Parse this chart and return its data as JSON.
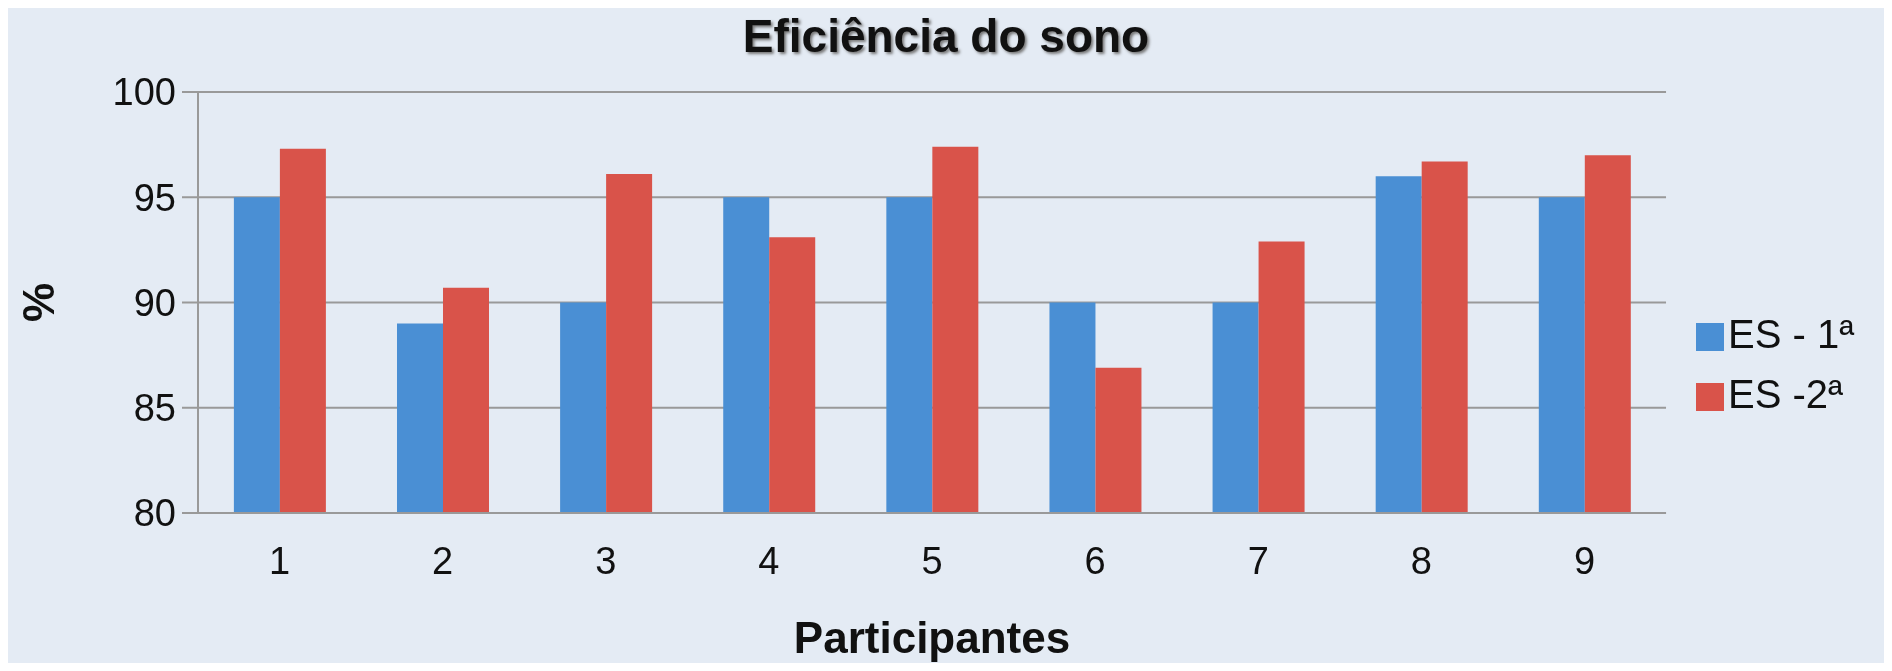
{
  "chart_data": {
    "type": "bar",
    "title": "Eficiência do sono",
    "xlabel": "Participantes",
    "ylabel": "%",
    "categories": [
      "1",
      "2",
      "3",
      "4",
      "5",
      "6",
      "7",
      "8",
      "9"
    ],
    "series": [
      {
        "name": "ES - 1ª",
        "color": "#4a8fd4",
        "values": [
          95,
          89,
          90,
          95,
          95,
          90,
          90,
          96,
          95
        ]
      },
      {
        "name": "ES -2ª",
        "color": "#d9534a",
        "values": [
          97.3,
          90.7,
          96.1,
          93.1,
          97.4,
          86.9,
          92.9,
          96.7,
          97.0
        ]
      }
    ],
    "ylim": [
      80,
      100
    ],
    "yticks": [
      80,
      85,
      90,
      95,
      100
    ],
    "grid": "y",
    "legend": "right"
  }
}
